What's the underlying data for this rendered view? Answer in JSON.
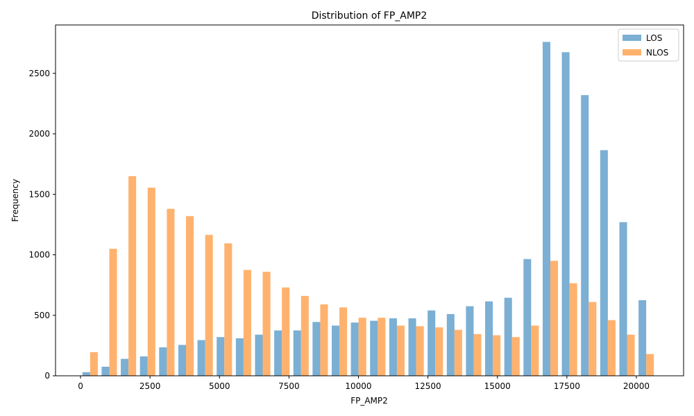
{
  "chart_data": {
    "type": "bar",
    "title": "Distribution of FP_AMP2",
    "xlabel": "FP_AMP2",
    "ylabel": "Frequency",
    "xlim": [
      -900,
      21700
    ],
    "ylim": [
      0,
      2900
    ],
    "xticks": [
      0,
      2500,
      5000,
      7500,
      10000,
      12500,
      15000,
      17500,
      20000
    ],
    "yticks": [
      0,
      500,
      1000,
      1500,
      2000,
      2500
    ],
    "grid": false,
    "legend_position": "top-right",
    "bin_starts": [
      0,
      690,
      1380,
      2070,
      2760,
      3450,
      4140,
      4830,
      5520,
      6210,
      6900,
      7590,
      8280,
      8970,
      9660,
      10350,
      11040,
      11730,
      12420,
      13110,
      13800,
      14490,
      15180,
      15870,
      16560,
      17250,
      17940,
      18630,
      19320,
      20010
    ],
    "bin_width": 690,
    "series": [
      {
        "name": "LOS",
        "color": "#7bafd4",
        "values": [
          30,
          75,
          140,
          160,
          235,
          255,
          295,
          320,
          310,
          340,
          375,
          375,
          445,
          415,
          440,
          455,
          475,
          475,
          540,
          510,
          575,
          615,
          645,
          965,
          2760,
          2675,
          2320,
          1865,
          1270,
          625
        ]
      },
      {
        "name": "NLOS",
        "color": "#ffb26e",
        "values": [
          195,
          1050,
          1650,
          1555,
          1380,
          1320,
          1165,
          1095,
          875,
          860,
          730,
          660,
          590,
          565,
          480,
          480,
          415,
          410,
          400,
          380,
          345,
          335,
          320,
          415,
          950,
          765,
          610,
          460,
          340,
          180
        ]
      }
    ]
  }
}
